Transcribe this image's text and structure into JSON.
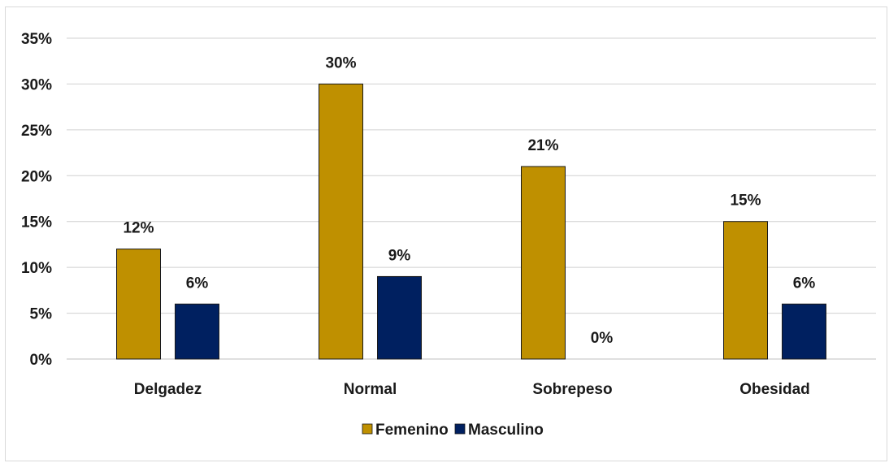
{
  "chart_data": {
    "type": "bar",
    "categories": [
      "Delgadez",
      "Normal",
      "Sobrepeso",
      "Obesidad"
    ],
    "series": [
      {
        "name": "Femenino",
        "values": [
          12,
          30,
          21,
          15
        ],
        "labels": [
          "12%",
          "30%",
          "21%",
          "15%"
        ],
        "color": "#BF9000"
      },
      {
        "name": "Masculino",
        "values": [
          6,
          9,
          0,
          6
        ],
        "labels": [
          "6%",
          "9%",
          "0%",
          "6%"
        ],
        "color": "#002060"
      }
    ],
    "y_ticks": [
      "0%",
      "5%",
      "10%",
      "15%",
      "20%",
      "25%",
      "30%",
      "35%"
    ],
    "ylim": [
      0,
      35
    ],
    "grid": true,
    "legend_position": "bottom",
    "title": "",
    "xlabel": "",
    "ylabel": ""
  }
}
